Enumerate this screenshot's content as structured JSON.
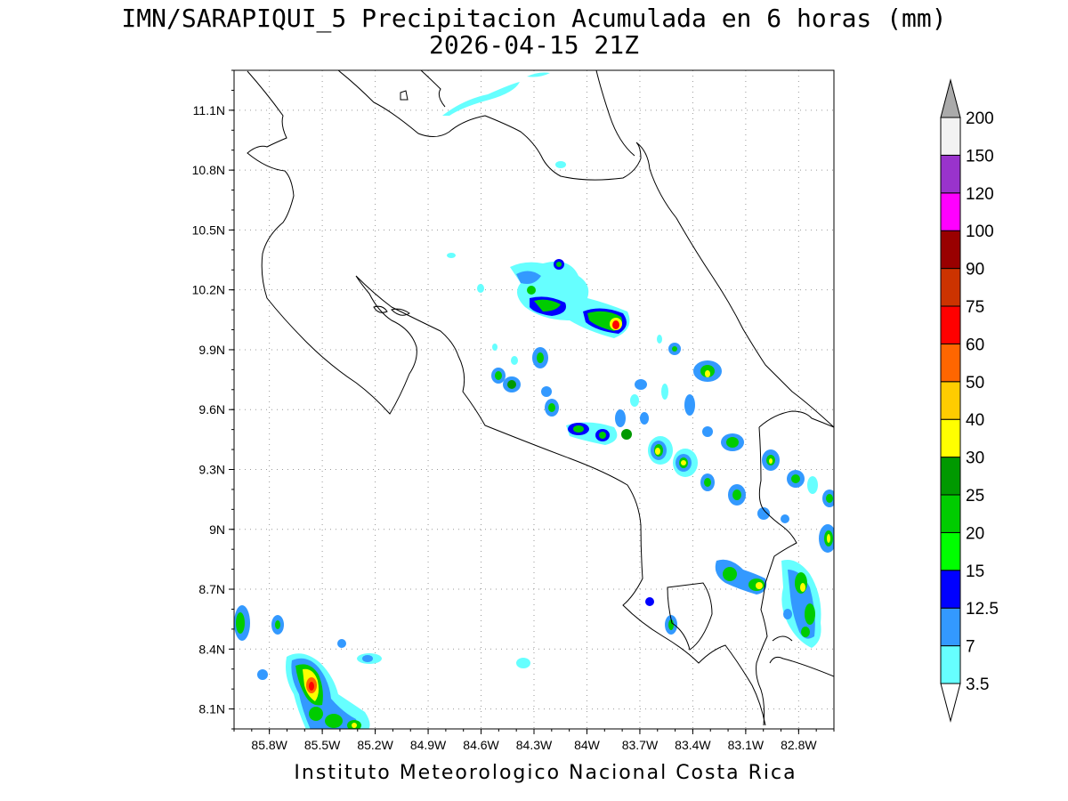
{
  "title": {
    "line1": "IMN/SARAPIQUI_5 Precipitacion Acumulada en 6 horas (mm)",
    "line2": "2026-04-15 21Z"
  },
  "footer": "Instituto Meteorologico Nacional Costa Rica",
  "map": {
    "lon_range": [
      -86.0,
      -82.6
    ],
    "lat_range": [
      8.0,
      11.3
    ],
    "lat_ticks": [
      "11.1N",
      "10.8N",
      "10.5N",
      "10.2N",
      "9.9N",
      "9.6N",
      "9.3N",
      "9N",
      "8.7N",
      "8.4N",
      "8.1N"
    ],
    "lon_ticks": [
      "85.8W",
      "85.5W",
      "85.2W",
      "84.9W",
      "84.6W",
      "84.3W",
      "84W",
      "83.7W",
      "83.4W",
      "83.1W",
      "82.8W"
    ],
    "grid": true,
    "grid_style": "dotted",
    "coastline_color": "#000000"
  },
  "colorbar": {
    "labels": [
      "3.5",
      "7",
      "12.5",
      "15",
      "20",
      "25",
      "30",
      "40",
      "50",
      "60",
      "75",
      "90",
      "100",
      "120",
      "150",
      "200"
    ],
    "colors": [
      "#66ffff",
      "#3399ff",
      "#0000ff",
      "#00ff00",
      "#00cc00",
      "#009900",
      "#ffff00",
      "#ffcc00",
      "#ff6600",
      "#ff0000",
      "#cc3300",
      "#990000",
      "#ff00ff",
      "#9933cc",
      "#f2f2f2"
    ],
    "over_color": "#aaaaaa",
    "under_color": "#ffffff"
  }
}
